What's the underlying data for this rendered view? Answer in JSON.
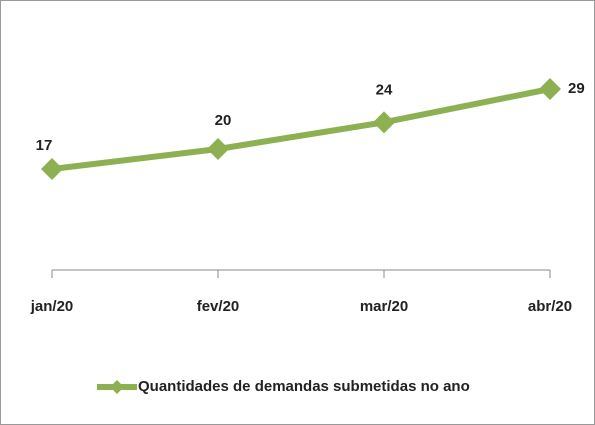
{
  "chart_data": {
    "type": "line",
    "categories": [
      "jan/20",
      "fev/20",
      "mar/20",
      "abr/20"
    ],
    "series": [
      {
        "name": "Quantidades de demandas submetidas no ano",
        "color": "#8db052",
        "values": [
          17,
          20,
          24,
          29
        ]
      }
    ],
    "ylim": [
      2,
      35
    ],
    "grid": false,
    "legend": "bottom"
  }
}
